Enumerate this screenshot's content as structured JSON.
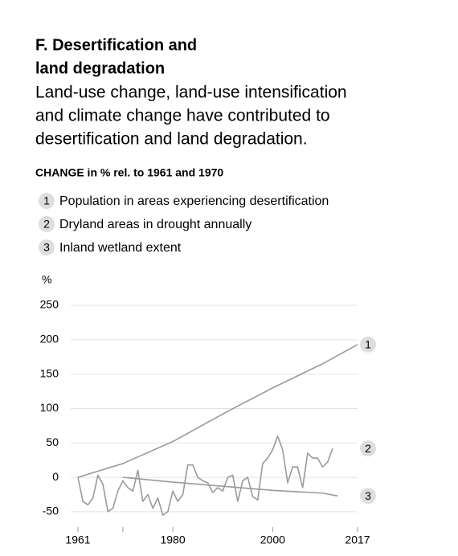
{
  "chart_data": {
    "type": "line",
    "title_line1": "F. Desertification and",
    "title_line2": "land degradation",
    "subtitle_line1": "Land-use change, land-use intensification",
    "subtitle_line2": "and climate change have contributed to",
    "subtitle_line3": "desertification and land degradation.",
    "axis_note": "CHANGE in % rel. to 1961 and 1970",
    "ylabel": "%",
    "xlim": [
      1961,
      2017
    ],
    "ylim": [
      -70,
      250
    ],
    "xticks": [
      1961,
      1980,
      2000,
      2017
    ],
    "minor_xticks": [
      1970
    ],
    "yticks": [
      250,
      200,
      150,
      100,
      50,
      0,
      -50
    ],
    "grid": true,
    "series": [
      {
        "label": "1",
        "name": "Population in areas experiencing desertification",
        "color": "#9a9a9a",
        "x": [
          1961,
          1970,
          1980,
          1990,
          2000,
          2010,
          2017
        ],
        "values": [
          0,
          20,
          52,
          92,
          130,
          165,
          193
        ]
      },
      {
        "label": "2",
        "name": "Dryland areas in drought annually",
        "color": "#9a9a9a",
        "x": [
          1961,
          1962,
          1963,
          1964,
          1965,
          1966,
          1967,
          1968,
          1969,
          1970,
          1971,
          1972,
          1973,
          1974,
          1975,
          1976,
          1977,
          1978,
          1979,
          1980,
          1981,
          1982,
          1983,
          1984,
          1985,
          1986,
          1987,
          1988,
          1989,
          1990,
          1991,
          1992,
          1993,
          1994,
          1995,
          1996,
          1997,
          1998,
          1999,
          2000,
          2001,
          2002,
          2003,
          2004,
          2005,
          2006,
          2007,
          2008,
          2009,
          2010,
          2011,
          2012
        ],
        "values": [
          0,
          -35,
          -40,
          -30,
          3,
          -10,
          -50,
          -45,
          -20,
          -5,
          -15,
          -20,
          10,
          -35,
          -25,
          -45,
          -30,
          -55,
          -50,
          -20,
          -35,
          -25,
          18,
          18,
          0,
          -5,
          -8,
          -22,
          -15,
          -20,
          0,
          3,
          -35,
          -5,
          0,
          -28,
          -33,
          20,
          28,
          40,
          60,
          40,
          -8,
          15,
          15,
          -15,
          35,
          28,
          28,
          15,
          22,
          42
        ]
      },
      {
        "label": "3",
        "name": "Inland wetland extent",
        "color": "#9a9a9a",
        "x": [
          1970,
          1980,
          1990,
          2000,
          2010,
          2013
        ],
        "values": [
          0,
          -7,
          -13,
          -19,
          -23,
          -27
        ]
      }
    ]
  }
}
